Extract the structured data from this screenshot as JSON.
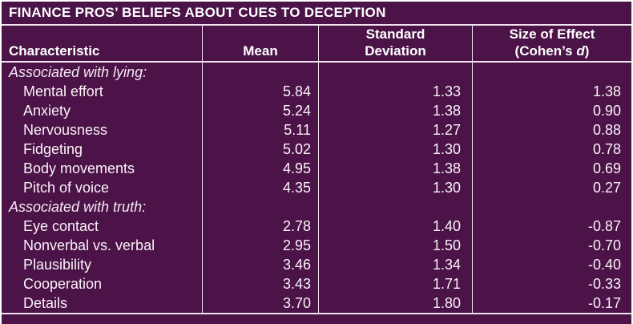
{
  "title": "FINANCE PROS’ BELIEFS ABOUT CUES TO DECEPTION",
  "header": {
    "characteristic": "Characteristic",
    "mean": "Mean",
    "sd_line1": "Standard",
    "sd_line2": "Deviation",
    "effect_line1": "Size of Effect",
    "effect_open": "(Cohen’s ",
    "effect_d": "d",
    "effect_close": ")"
  },
  "rows": [
    {
      "label": "Associated with lying:",
      "mean": "",
      "sd": "",
      "d": "",
      "section": true
    },
    {
      "label": "Mental effort",
      "mean": "5.84",
      "sd": "1.33",
      "d": "1.38",
      "section": false
    },
    {
      "label": "Anxiety",
      "mean": "5.24",
      "sd": "1.38",
      "d": "0.90",
      "section": false
    },
    {
      "label": "Nervousness",
      "mean": "5.11",
      "sd": "1.27",
      "d": "0.88",
      "section": false
    },
    {
      "label": "Fidgeting",
      "mean": "5.02",
      "sd": "1.30",
      "d": "0.78",
      "section": false
    },
    {
      "label": "Body movements",
      "mean": "4.95",
      "sd": "1.38",
      "d": "0.69",
      "section": false
    },
    {
      "label": "Pitch of voice",
      "mean": "4.35",
      "sd": "1.30",
      "d": "0.27",
      "section": false
    },
    {
      "label": "Associated with truth:",
      "mean": "",
      "sd": "",
      "d": "",
      "section": true
    },
    {
      "label": "Eye contact",
      "mean": "2.78",
      "sd": "1.40",
      "d": "-0.87",
      "section": false
    },
    {
      "label": "Nonverbal vs. verbal",
      "mean": "2.95",
      "sd": "1.50",
      "d": "-0.70",
      "section": false
    },
    {
      "label": "Plausibility",
      "mean": "3.46",
      "sd": "1.34",
      "d": "-0.40",
      "section": false
    },
    {
      "label": "Cooperation",
      "mean": "3.43",
      "sd": "1.71",
      "d": "-0.33",
      "section": false
    },
    {
      "label": "Details",
      "mean": "3.70",
      "sd": "1.80",
      "d": "-0.17",
      "section": false
    }
  ],
  "colors": {
    "background": "#4B1347",
    "rule": "#F3E3EF",
    "text": "#FBF2F9",
    "title_text": "#FFFFFF"
  },
  "chart_data": {
    "type": "table",
    "title": "FINANCE PROS’ BELIEFS ABOUT CUES TO DECEPTION",
    "columns": [
      "Characteristic",
      "Mean",
      "Standard Deviation",
      "Size of Effect (Cohen’s d)"
    ],
    "sections": [
      {
        "label": "Associated with lying:",
        "rows": [
          {
            "characteristic": "Mental effort",
            "mean": 5.84,
            "sd": 1.33,
            "cohens_d": 1.38
          },
          {
            "characteristic": "Anxiety",
            "mean": 5.24,
            "sd": 1.38,
            "cohens_d": 0.9
          },
          {
            "characteristic": "Nervousness",
            "mean": 5.11,
            "sd": 1.27,
            "cohens_d": 0.88
          },
          {
            "characteristic": "Fidgeting",
            "mean": 5.02,
            "sd": 1.3,
            "cohens_d": 0.78
          },
          {
            "characteristic": "Body movements",
            "mean": 4.95,
            "sd": 1.38,
            "cohens_d": 0.69
          },
          {
            "characteristic": "Pitch of voice",
            "mean": 4.35,
            "sd": 1.3,
            "cohens_d": 0.27
          }
        ]
      },
      {
        "label": "Associated with truth:",
        "rows": [
          {
            "characteristic": "Eye contact",
            "mean": 2.78,
            "sd": 1.4,
            "cohens_d": -0.87
          },
          {
            "characteristic": "Nonverbal vs. verbal",
            "mean": 2.95,
            "sd": 1.5,
            "cohens_d": -0.7
          },
          {
            "characteristic": "Plausibility",
            "mean": 3.46,
            "sd": 1.34,
            "cohens_d": -0.4
          },
          {
            "characteristic": "Cooperation",
            "mean": 3.43,
            "sd": 1.71,
            "cohens_d": -0.33
          },
          {
            "characteristic": "Details",
            "mean": 3.7,
            "sd": 1.8,
            "cohens_d": -0.17
          }
        ]
      }
    ]
  }
}
